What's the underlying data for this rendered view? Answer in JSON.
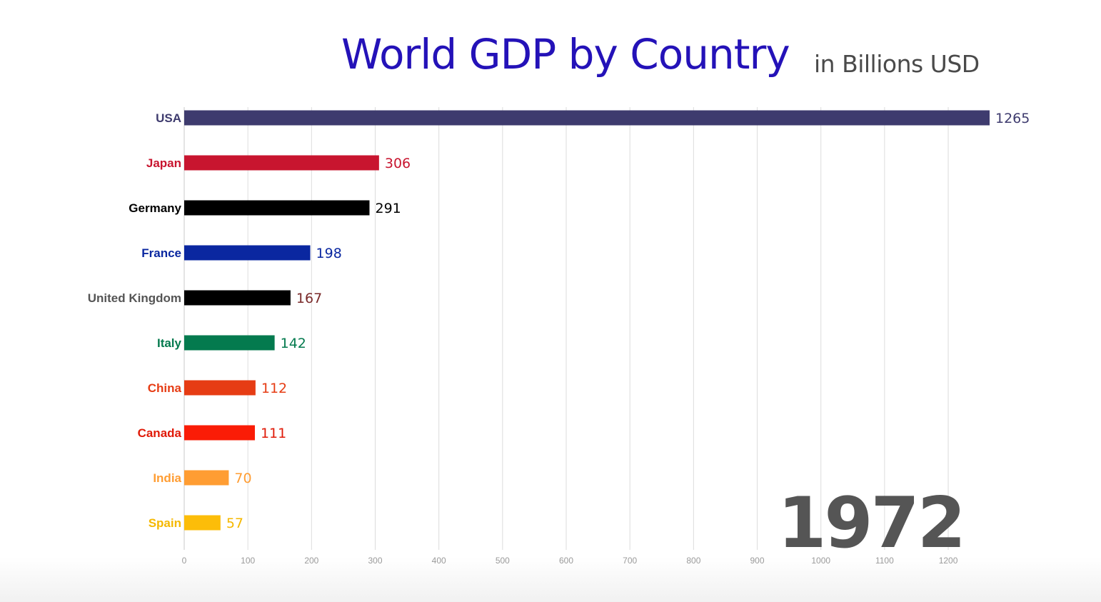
{
  "chart_data": {
    "type": "bar",
    "orientation": "horizontal",
    "title": "World GDP by Country",
    "subtitle": "in Billions USD",
    "year": "1972",
    "xlim": [
      0,
      1265
    ],
    "x_ticks": [
      0,
      100,
      200,
      300,
      400,
      500,
      600,
      700,
      800,
      900,
      1000,
      1100,
      1200
    ],
    "categories": [
      "USA",
      "Japan",
      "Germany",
      "France",
      "United Kingdom",
      "Italy",
      "China",
      "Canada",
      "India",
      "Spain"
    ],
    "values": [
      1265,
      306,
      291,
      198,
      167,
      142,
      112,
      111,
      70,
      57
    ],
    "colors": [
      "#3e3b6e",
      "#c8152f",
      "#000000",
      "#0a27a0",
      "#000000",
      "#047a4e",
      "#e63c14",
      "#fa1c06",
      "#ff9d33",
      "#fcbd09"
    ],
    "label_colors": [
      "#3e3b6e",
      "#c8152f",
      "#000000",
      "#0a27a0",
      "#555555",
      "#047a4e",
      "#e63c14",
      "#e01a08",
      "#ff9d33",
      "#f5b800"
    ],
    "value_label_colors": [
      "#3e3b6e",
      "#c8152f",
      "#000000",
      "#0a27a0",
      "#7a2a2a",
      "#047a4e",
      "#e63c14",
      "#e01a08",
      "#ff9d33",
      "#f5b800"
    ],
    "grid": true
  }
}
